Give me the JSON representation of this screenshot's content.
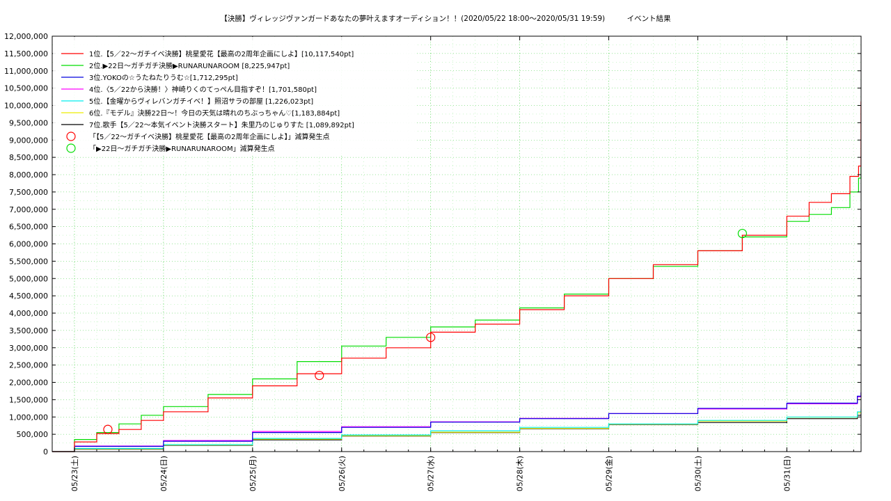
{
  "chart_data": {
    "type": "line",
    "title": "【決勝】ヴィレッジヴァンガードあなたの夢叶えますオーディション！！(2020/05/22 18:00〜2020/05/31 19:59)　　　イベント結果",
    "xlabel": "",
    "ylabel": "",
    "x_start": "2020-05-22T18:00",
    "x_end": "2020-05-31T20:00",
    "x_ticks": [
      "05/23(土)",
      "05/24(日)",
      "05/25(月)",
      "05/26(火)",
      "05/27(水)",
      "05/28(木)",
      "05/29(金)",
      "05/30(土)",
      "05/31(日)"
    ],
    "ylim": [
      0,
      12000000
    ],
    "y_ticks": [
      "0",
      "500,000",
      "1,000,000",
      "1,500,000",
      "2,000,000",
      "2,500,000",
      "3,000,000",
      "3,500,000",
      "4,000,000",
      "4,500,000",
      "5,000,000",
      "5,500,000",
      "6,000,000",
      "6,500,000",
      "7,000,000",
      "7,500,000",
      "8,000,000",
      "8,500,000",
      "9,000,000",
      "9,500,000",
      "10,000,000",
      "10,500,000",
      "11,000,000",
      "11,500,000",
      "12,000,000"
    ],
    "grid": true,
    "legend_position": "top-left",
    "series": [
      {
        "name": "1位.【5／22〜ガチイベ決勝】桃星愛花【最高の2周年企画にしよ】[10,117,540pt]",
        "color": "#ff0000",
        "x": [
          "2020-05-22T18:00",
          "2020-05-23T00:00",
          "2020-05-23T06:00",
          "2020-05-23T12:00",
          "2020-05-23T18:00",
          "2020-05-24T00:00",
          "2020-05-24T12:00",
          "2020-05-25T00:00",
          "2020-05-25T12:00",
          "2020-05-26T00:00",
          "2020-05-26T12:00",
          "2020-05-27T00:00",
          "2020-05-27T12:00",
          "2020-05-28T00:00",
          "2020-05-28T12:00",
          "2020-05-29T00:00",
          "2020-05-29T12:00",
          "2020-05-30T00:00",
          "2020-05-30T12:00",
          "2020-05-31T00:00",
          "2020-05-31T06:00",
          "2020-05-31T12:00",
          "2020-05-31T17:00",
          "2020-05-31T19:20",
          "2020-05-31T19:59"
        ],
        "y": [
          0,
          280000,
          520000,
          640000,
          900000,
          1150000,
          1550000,
          1900000,
          2250000,
          2700000,
          3000000,
          3450000,
          3680000,
          4100000,
          4500000,
          5000000,
          5400000,
          5800000,
          6250000,
          6800000,
          7200000,
          7450000,
          7950000,
          8250000,
          10117540
        ]
      },
      {
        "name": "2位.▶︎22日〜ガチガチ決勝▶︎RUNARUNAROOM [8,225,947pt]",
        "color": "#00dd00",
        "x": [
          "2020-05-22T18:00",
          "2020-05-23T00:00",
          "2020-05-23T06:00",
          "2020-05-23T12:00",
          "2020-05-23T18:00",
          "2020-05-24T00:00",
          "2020-05-24T12:00",
          "2020-05-25T00:00",
          "2020-05-25T12:00",
          "2020-05-26T00:00",
          "2020-05-26T12:00",
          "2020-05-27T00:00",
          "2020-05-27T12:00",
          "2020-05-28T00:00",
          "2020-05-28T12:00",
          "2020-05-29T00:00",
          "2020-05-29T12:00",
          "2020-05-30T00:00",
          "2020-05-30T12:00",
          "2020-05-31T00:00",
          "2020-05-31T06:00",
          "2020-05-31T12:00",
          "2020-05-31T17:00",
          "2020-05-31T19:20",
          "2020-05-31T19:59"
        ],
        "y": [
          0,
          350000,
          550000,
          800000,
          1050000,
          1300000,
          1650000,
          2100000,
          2600000,
          3050000,
          3300000,
          3600000,
          3800000,
          4150000,
          4550000,
          5000000,
          5350000,
          5800000,
          6200000,
          6650000,
          6850000,
          7050000,
          7500000,
          7900000,
          8225947
        ]
      },
      {
        "name": "3位.YOKOの☆うたねたりうむ☆[1,712,295pt]",
        "color": "#0000dd",
        "x": [
          "2020-05-22T18:00",
          "2020-05-23T00:00",
          "2020-05-24T00:00",
          "2020-05-25T00:00",
          "2020-05-26T00:00",
          "2020-05-27T00:00",
          "2020-05-28T00:00",
          "2020-05-29T00:00",
          "2020-05-30T00:00",
          "2020-05-31T00:00",
          "2020-05-31T19:00",
          "2020-05-31T19:59"
        ],
        "y": [
          0,
          150000,
          300000,
          550000,
          700000,
          850000,
          950000,
          1100000,
          1250000,
          1400000,
          1600000,
          1712295
        ]
      },
      {
        "name": "4位.〈5／22から決勝！〉神崎りくのてっぺん目指すぞ！[1,701,580pt]",
        "color": "#ff00ff",
        "x": [
          "2020-05-22T18:00",
          "2020-05-23T00:00",
          "2020-05-24T00:00",
          "2020-05-25T00:00",
          "2020-05-26T00:00",
          "2020-05-27T00:00",
          "2020-05-28T00:00",
          "2020-05-29T00:00",
          "2020-05-30T00:00",
          "2020-05-31T00:00",
          "2020-05-31T19:00",
          "2020-05-31T19:59"
        ],
        "y": [
          0,
          160000,
          320000,
          580000,
          720000,
          860000,
          960000,
          1100000,
          1230000,
          1380000,
          1580000,
          1701580
        ]
      },
      {
        "name": "5位.【金曜からヴィレバンガチイベ！】照沼サラの部屋 [1,226,023pt]",
        "color": "#00eeee",
        "x": [
          "2020-05-22T18:00",
          "2020-05-23T00:00",
          "2020-05-24T00:00",
          "2020-05-25T00:00",
          "2020-05-26T00:00",
          "2020-05-27T00:00",
          "2020-05-28T00:00",
          "2020-05-29T00:00",
          "2020-05-30T00:00",
          "2020-05-31T00:00",
          "2020-05-31T19:00",
          "2020-05-31T19:59"
        ],
        "y": [
          0,
          90000,
          200000,
          380000,
          480000,
          600000,
          700000,
          800000,
          900000,
          1000000,
          1150000,
          1226023
        ]
      },
      {
        "name": "6位.『モデル』決勝22日〜！今日の天気は晴れのちぶっちゃん♡[1,183,884pt]",
        "color": "#eeee00",
        "x": [
          "2020-05-22T18:00",
          "2020-05-23T00:00",
          "2020-05-24T00:00",
          "2020-05-25T00:00",
          "2020-05-26T00:00",
          "2020-05-27T00:00",
          "2020-05-28T00:00",
          "2020-05-29T00:00",
          "2020-05-30T00:00",
          "2020-05-31T00:00",
          "2020-05-31T19:00",
          "2020-05-31T19:59"
        ],
        "y": [
          0,
          80000,
          190000,
          360000,
          460000,
          560000,
          670000,
          790000,
          880000,
          990000,
          1120000,
          1183884
        ]
      },
      {
        "name": "7位.歌手【5／22〜本気イベント決勝スタート】朱里乃のじゅりすた [1,089,892pt]",
        "color": "#000000",
        "x": [
          "2020-05-22T18:00",
          "2020-05-23T00:00",
          "2020-05-24T00:00",
          "2020-05-25T00:00",
          "2020-05-26T00:00",
          "2020-05-27T00:00",
          "2020-05-28T00:00",
          "2020-05-29T00:00",
          "2020-05-30T00:00",
          "2020-05-31T00:00",
          "2020-05-31T19:00",
          "2020-05-31T19:59"
        ],
        "y": [
          0,
          70000,
          180000,
          340000,
          450000,
          550000,
          660000,
          780000,
          840000,
          950000,
          1050000,
          1089892
        ]
      }
    ],
    "markers": [
      {
        "name": "「【5／22〜ガチイベ決勝】桃星愛花【最高の2周年企画にしよ】」減算発生点",
        "color": "#ff0000",
        "points": [
          {
            "x": "2020-05-23T09:00",
            "y": 640000
          },
          {
            "x": "2020-05-25T18:00",
            "y": 2200000
          },
          {
            "x": "2020-05-27T00:00",
            "y": 3300000
          }
        ]
      },
      {
        "name": "「▶︎22日〜ガチガチ決勝▶︎RUNARUNAROOM」減算発生点",
        "color": "#00dd00",
        "points": [
          {
            "x": "2020-05-30T12:00",
            "y": 6300000
          }
        ]
      }
    ]
  }
}
